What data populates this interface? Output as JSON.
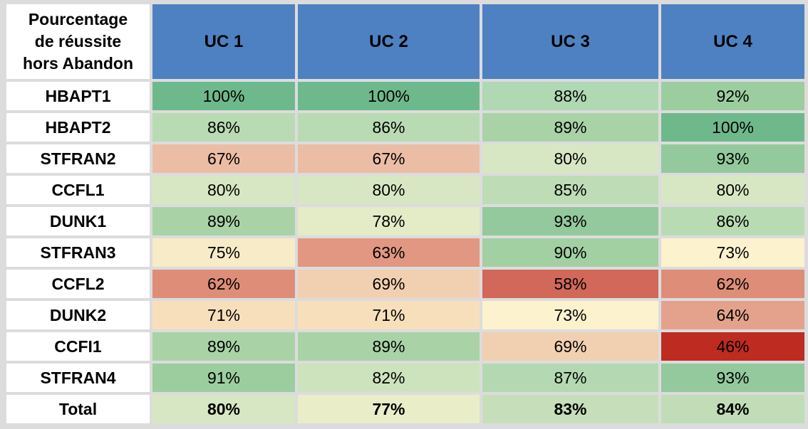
{
  "table": {
    "corner_lines": [
      "Pourcentage",
      "de réussite",
      "hors Abandon"
    ],
    "columns": [
      "UC 1",
      "UC 2",
      "UC 3",
      "UC 4"
    ],
    "rows": [
      {
        "label": "HBAPT1",
        "values": [
          "100%",
          "100%",
          "88%",
          "92%"
        ],
        "colors": [
          "#6eb98c",
          "#6eb98c",
          "#b0d8b2",
          "#9ccd9f"
        ]
      },
      {
        "label": "HBAPT2",
        "values": [
          "86%",
          "86%",
          "89%",
          "100%"
        ],
        "colors": [
          "#b9dbb4",
          "#b9dbb4",
          "#a9d3a7",
          "#6eb98c"
        ]
      },
      {
        "label": "STFRAN2",
        "values": [
          "67%",
          "67%",
          "80%",
          "93%"
        ],
        "colors": [
          "#ebbda5",
          "#ebbda5",
          "#d8e7c3",
          "#93c99c"
        ]
      },
      {
        "label": "CCFL1",
        "values": [
          "80%",
          "80%",
          "85%",
          "80%"
        ],
        "colors": [
          "#d8e7c3",
          "#d8e7c3",
          "#bedcb6",
          "#d8e7c3"
        ]
      },
      {
        "label": "DUNK1",
        "values": [
          "89%",
          "78%",
          "93%",
          "86%"
        ],
        "colors": [
          "#a9d3a7",
          "#e3ebc7",
          "#93c99c",
          "#b9dbb4"
        ]
      },
      {
        "label": "STFRAN3",
        "values": [
          "75%",
          "63%",
          "90%",
          "73%"
        ],
        "colors": [
          "#f7ebc8",
          "#e19782",
          "#a2d0a3",
          "#fdf2ce"
        ]
      },
      {
        "label": "CCFL2",
        "values": [
          "62%",
          "69%",
          "58%",
          "62%"
        ],
        "colors": [
          "#de8d78",
          "#f1cfb1",
          "#d1685a",
          "#de8d78"
        ]
      },
      {
        "label": "DUNK2",
        "values": [
          "71%",
          "71%",
          "73%",
          "64%"
        ],
        "colors": [
          "#f8dfbc",
          "#f8dfbc",
          "#fdf2ce",
          "#e4a28c"
        ]
      },
      {
        "label": "CCFI1",
        "values": [
          "89%",
          "89%",
          "69%",
          "46%"
        ],
        "colors": [
          "#a9d3a7",
          "#a9d3a7",
          "#f1cfb1",
          "#bd2b21"
        ]
      },
      {
        "label": "STFRAN4",
        "values": [
          "91%",
          "82%",
          "87%",
          "93%"
        ],
        "colors": [
          "#9ccd9f",
          "#cde3bd",
          "#b4d9b2",
          "#93c99c"
        ]
      },
      {
        "label": "Total",
        "values": [
          "80%",
          "77%",
          "83%",
          "84%"
        ],
        "colors": [
          "#d8e7c3",
          "#e9eec9",
          "#c6dfba",
          "#c0ddb7"
        ],
        "bold": true
      }
    ]
  }
}
